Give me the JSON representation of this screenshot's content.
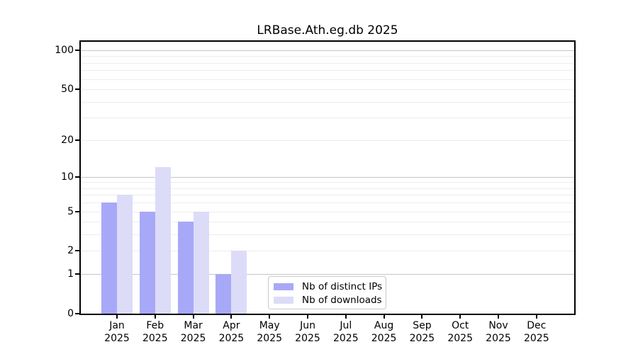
{
  "chart_data": {
    "type": "bar",
    "title": "LRBase.Ath.eg.db 2025",
    "categories": [
      "Jan",
      "Feb",
      "Mar",
      "Apr",
      "May",
      "Jun",
      "Jul",
      "Aug",
      "Sep",
      "Oct",
      "Nov",
      "Dec"
    ],
    "x_year_label": "2025",
    "series": [
      {
        "name": "Nb of distinct IPs",
        "color": "#a8a8f8",
        "values": [
          6,
          5,
          4,
          1,
          0,
          0,
          0,
          0,
          0,
          0,
          0,
          0
        ]
      },
      {
        "name": "Nb of downloads",
        "color": "#dcdcf8",
        "values": [
          7,
          12,
          5,
          2,
          0,
          0,
          0,
          0,
          0,
          0,
          0,
          0
        ]
      }
    ],
    "yscale": "log1p",
    "ylim": [
      0,
      117
    ],
    "y_ticks": [
      0,
      1,
      2,
      5,
      10,
      20,
      50,
      100
    ],
    "y_major_grid": [
      1,
      10,
      100
    ],
    "y_minor_grid": [
      2,
      3,
      4,
      5,
      6,
      7,
      8,
      9,
      20,
      30,
      40,
      50,
      60,
      70,
      80,
      90
    ],
    "grid": true,
    "legend_position": "lower center"
  },
  "colors": {
    "background": "#ffffff",
    "axis": "#000000",
    "grid_major": "#c6c6c6",
    "grid_minor": "#ededed",
    "legend_border": "#c9c9c9",
    "bar_distinct_ips": "#a8a8f8",
    "bar_downloads": "#dcdcf8"
  }
}
